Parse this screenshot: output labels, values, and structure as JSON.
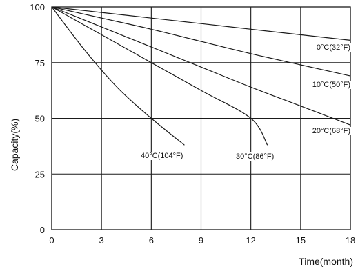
{
  "chart_data": {
    "type": "line",
    "title": "",
    "xlabel": "Time(month)",
    "ylabel": "Capacity(%)",
    "xlim": [
      0,
      18
    ],
    "ylim": [
      0,
      100
    ],
    "x_ticks": [
      "0",
      "3",
      "6",
      "9",
      "12",
      "15",
      "18"
    ],
    "y_ticks": [
      "0",
      "25",
      "50",
      "75",
      "100"
    ],
    "grid": true,
    "series": [
      {
        "name": "0°C(32°F)",
        "x": [
          0,
          3,
          6,
          9,
          12,
          15,
          18
        ],
        "y": [
          100,
          97.5,
          95,
          92.5,
          90,
          87.5,
          85
        ]
      },
      {
        "name": "10°C(50°F)",
        "x": [
          0,
          3,
          6,
          9,
          12,
          15,
          18
        ],
        "y": [
          100,
          95,
          90,
          84.5,
          79,
          74,
          69
        ]
      },
      {
        "name": "20°C(68°F)",
        "x": [
          0,
          3,
          6,
          9,
          12,
          15,
          18
        ],
        "y": [
          100,
          91,
          82,
          73,
          64,
          55.5,
          47
        ]
      },
      {
        "name": "30°C(86°F)",
        "x": [
          0,
          3,
          6,
          9,
          12,
          13
        ],
        "y": [
          100,
          87.5,
          75,
          62.5,
          50,
          38
        ]
      },
      {
        "name": "40°C(104°F)",
        "x": [
          0,
          2,
          4,
          6,
          8
        ],
        "y": [
          100,
          80.5,
          63.5,
          50,
          38
        ]
      }
    ],
    "colors": {
      "line": "#1a1a1a",
      "grid": "#1a1a1a",
      "background": "#ffffff"
    }
  }
}
